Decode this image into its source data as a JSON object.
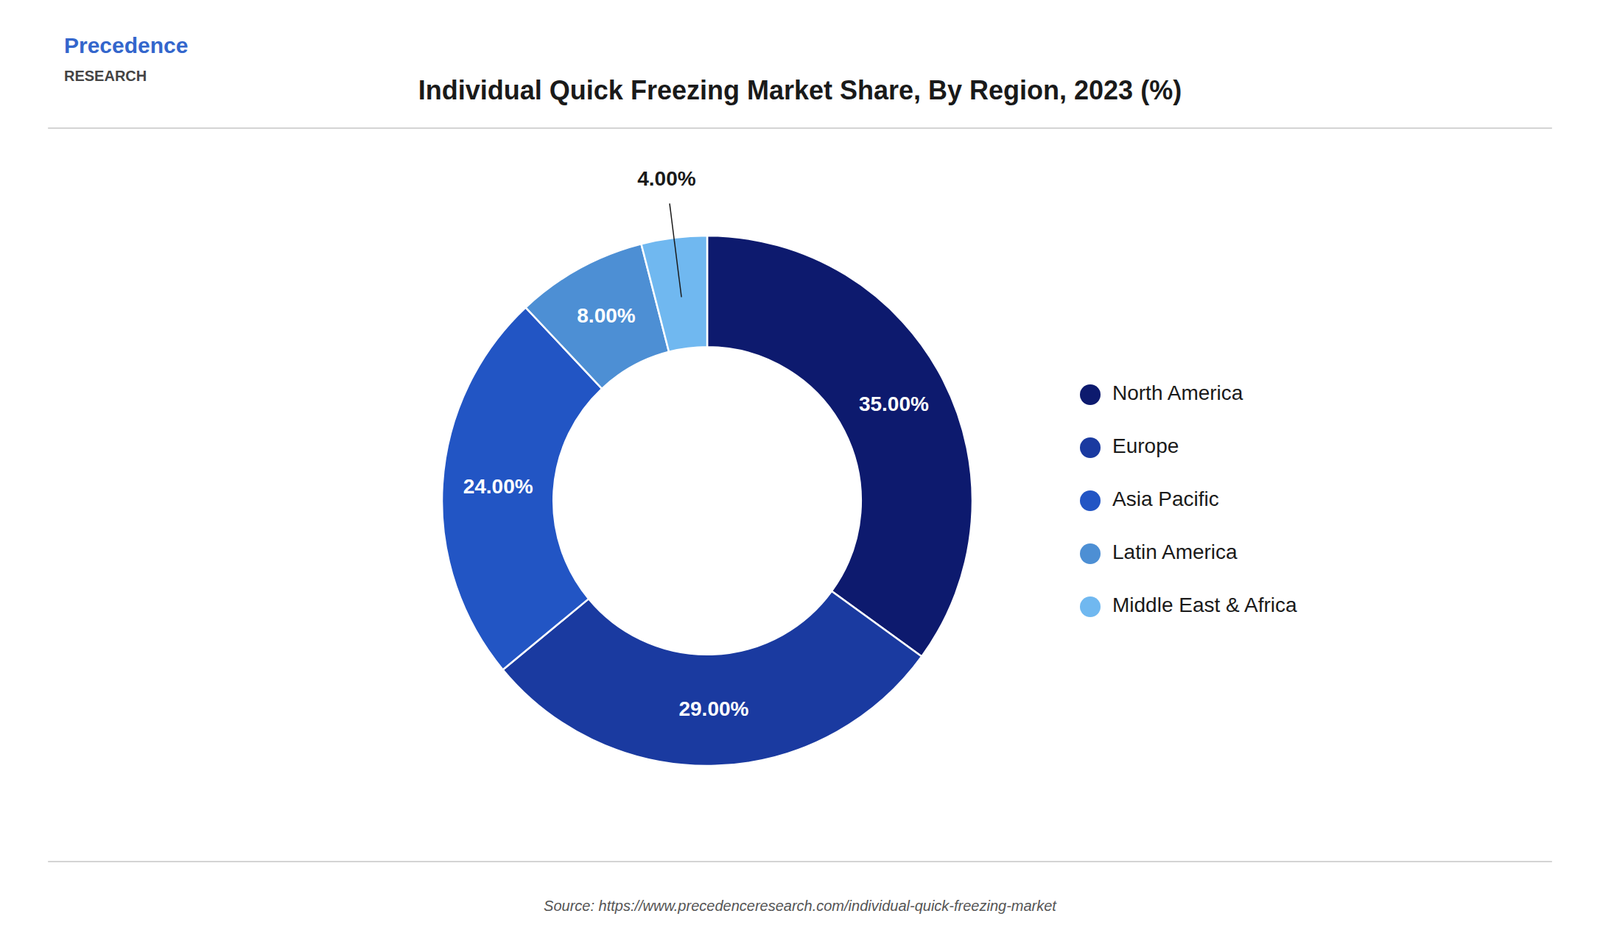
{
  "chart_data": {
    "type": "donut",
    "title": "Individual Quick Freezing Market Share, By Region, 2023 (%)",
    "categories": [
      "North America",
      "Europe",
      "Asia Pacific",
      "Latin America",
      "Middle East & Africa"
    ],
    "values": [
      35.0,
      29.0,
      24.0,
      8.0,
      4.0
    ],
    "value_labels": [
      "35.00%",
      "29.00%",
      "24.00%",
      "8.00%",
      "4.00%"
    ],
    "colors": [
      "#0d1a6e",
      "#1a3aa0",
      "#2255c4",
      "#4d8fd4",
      "#70b8f0"
    ],
    "data_labels": true,
    "legend": "right",
    "annotations": [
      "Precedence",
      "RESEARCH",
      "Source: https://www.precedenceresearch.com/individual-quick-freezing-market"
    ]
  }
}
